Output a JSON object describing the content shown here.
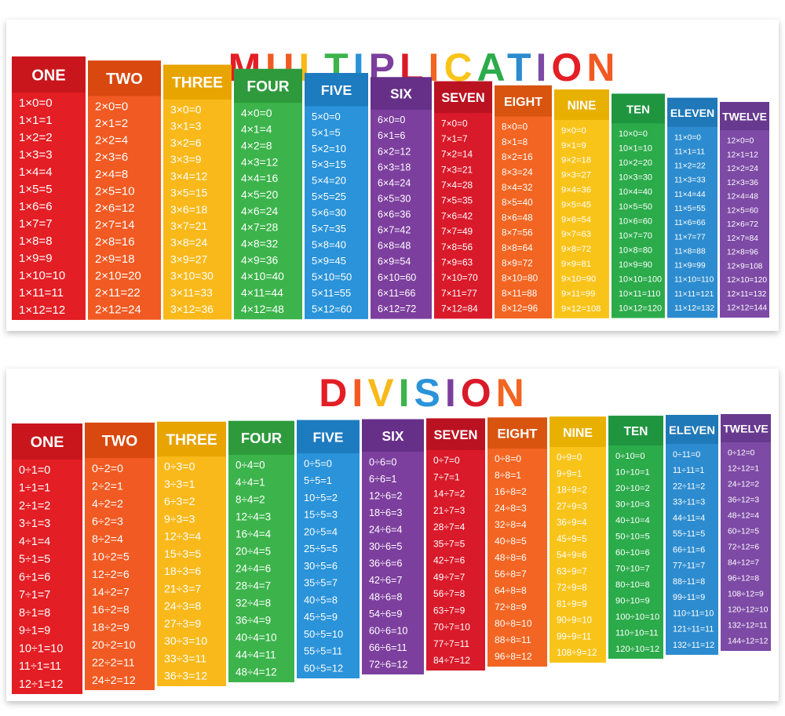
{
  "multiplication": {
    "title": "MULTIPLICATION",
    "columns": [
      {
        "header": "ONE",
        "facts": [
          "1×0=0",
          "1×1=1",
          "1×2=2",
          "1×3=3",
          "1×4=4",
          "1×5=5",
          "1×6=6",
          "1×7=7",
          "1×8=8",
          "1×9=9",
          "1×10=10",
          "1×11=11",
          "1×12=12"
        ]
      },
      {
        "header": "TWO",
        "facts": [
          "2×0=0",
          "2×1=2",
          "2×2=4",
          "2×3=6",
          "2×4=8",
          "2×5=10",
          "2×6=12",
          "2×7=14",
          "2×8=16",
          "2×9=18",
          "2×10=20",
          "2×11=22",
          "2×12=24"
        ]
      },
      {
        "header": "THREE",
        "facts": [
          "3×0=0",
          "3×1=3",
          "3×2=6",
          "3×3=9",
          "3×4=12",
          "3×5=15",
          "3×6=18",
          "3×7=21",
          "3×8=24",
          "3×9=27",
          "3×10=30",
          "3×11=33",
          "3×12=36"
        ]
      },
      {
        "header": "FOUR",
        "facts": [
          "4×0=0",
          "4×1=4",
          "4×2=8",
          "4×3=12",
          "4×4=16",
          "4×5=20",
          "4×6=24",
          "4×7=28",
          "4×8=32",
          "4×9=36",
          "4×10=40",
          "4×11=44",
          "4×12=48"
        ]
      },
      {
        "header": "FIVE",
        "facts": [
          "5×0=0",
          "5×1=5",
          "5×2=10",
          "5×3=15",
          "5×4=20",
          "5×5=25",
          "5×6=30",
          "5×7=35",
          "5×8=40",
          "5×9=45",
          "5×10=50",
          "5×11=55",
          "5×12=60"
        ]
      },
      {
        "header": "SIX",
        "facts": [
          "6×0=0",
          "6×1=6",
          "6×2=12",
          "6×3=18",
          "6×4=24",
          "6×5=30",
          "6×6=36",
          "6×7=42",
          "6×8=48",
          "6×9=54",
          "6×10=60",
          "6×11=66",
          "6×12=72"
        ]
      },
      {
        "header": "SEVEN",
        "facts": [
          "7×0=0",
          "7×1=7",
          "7×2=14",
          "7×3=21",
          "7×4=28",
          "7×5=35",
          "7×6=42",
          "7×7=49",
          "7×8=56",
          "7×9=63",
          "7×10=70",
          "7×11=77",
          "7×12=84"
        ]
      },
      {
        "header": "EIGHT",
        "facts": [
          "8×0=0",
          "8×1=8",
          "8×2=16",
          "8×3=24",
          "8×4=32",
          "8×5=40",
          "8×6=48",
          "8×7=56",
          "8×8=64",
          "8×9=72",
          "8×10=80",
          "8×11=88",
          "8×12=96"
        ]
      },
      {
        "header": "NINE",
        "facts": [
          "9×0=0",
          "9×1=9",
          "9×2=18",
          "9×3=27",
          "9×4=36",
          "9×5=45",
          "9×6=54",
          "9×7=63",
          "9×8=72",
          "9×9=81",
          "9×10=90",
          "9×11=99",
          "9×12=108"
        ]
      },
      {
        "header": "TEN",
        "facts": [
          "10×0=0",
          "10×1=10",
          "10×2=20",
          "10×3=30",
          "10×4=40",
          "10×5=50",
          "10×6=60",
          "10×7=70",
          "10×8=80",
          "10×9=90",
          "10×10=100",
          "10×11=110",
          "10×12=120"
        ]
      },
      {
        "header": "ELEVEN",
        "facts": [
          "11×0=0",
          "11×1=11",
          "11×2=22",
          "11×3=33",
          "11×4=44",
          "11×5=55",
          "11×6=66",
          "11×7=77",
          "11×8=88",
          "11×9=99",
          "11×10=110",
          "11×11=121",
          "11×12=132"
        ]
      },
      {
        "header": "TWELVE",
        "facts": [
          "12×0=0",
          "12×1=12",
          "12×2=24",
          "12×3=36",
          "12×4=48",
          "12×5=60",
          "12×6=72",
          "12×7=84",
          "12×8=96",
          "12×9=108",
          "12×10=120",
          "12×11=132",
          "12×12=144"
        ]
      }
    ]
  },
  "division": {
    "title": "DIVISION",
    "columns": [
      {
        "header": "ONE",
        "facts": [
          "0÷1=0",
          "1÷1=1",
          "2÷1=2",
          "3÷1=3",
          "4÷1=4",
          "5÷1=5",
          "6÷1=6",
          "7÷1=7",
          "8÷1=8",
          "9÷1=9",
          "10÷1=10",
          "11÷1=11",
          "12÷1=12"
        ]
      },
      {
        "header": "TWO",
        "facts": [
          "0÷2=0",
          "2÷2=1",
          "4÷2=2",
          "6÷2=3",
          "8÷2=4",
          "10÷2=5",
          "12÷2=6",
          "14÷2=7",
          "16÷2=8",
          "18÷2=9",
          "20÷2=10",
          "22÷2=11",
          "24÷2=12"
        ]
      },
      {
        "header": "THREE",
        "facts": [
          "0÷3=0",
          "3÷3=1",
          "6÷3=2",
          "9÷3=3",
          "12÷3=4",
          "15÷3=5",
          "18÷3=6",
          "21÷3=7",
          "24÷3=8",
          "27÷3=9",
          "30÷3=10",
          "33÷3=11",
          "36÷3=12"
        ]
      },
      {
        "header": "FOUR",
        "facts": [
          "0÷4=0",
          "4÷4=1",
          "8÷4=2",
          "12÷4=3",
          "16÷4=4",
          "20÷4=5",
          "24÷4=6",
          "28÷4=7",
          "32÷4=8",
          "36÷4=9",
          "40÷4=10",
          "44÷4=11",
          "48÷4=12"
        ]
      },
      {
        "header": "FIVE",
        "facts": [
          "0÷5=0",
          "5÷5=1",
          "10÷5=2",
          "15÷5=3",
          "20÷5=4",
          "25÷5=5",
          "30÷5=6",
          "35÷5=7",
          "40÷5=8",
          "45÷5=9",
          "50÷5=10",
          "55÷5=11",
          "60÷5=12"
        ]
      },
      {
        "header": "SIX",
        "facts": [
          "0÷6=0",
          "6÷6=1",
          "12÷6=2",
          "18÷6=3",
          "24÷6=4",
          "30÷6=5",
          "36÷6=6",
          "42÷6=7",
          "48÷6=8",
          "54÷6=9",
          "60÷6=10",
          "66÷6=11",
          "72÷6=12"
        ]
      },
      {
        "header": "SEVEN",
        "facts": [
          "0÷7=0",
          "7÷7=1",
          "14÷7=2",
          "21÷7=3",
          "28÷7=4",
          "35÷7=5",
          "42÷7=6",
          "49÷7=7",
          "56÷7=8",
          "63÷7=9",
          "70÷7=10",
          "77÷7=11",
          "84÷7=12"
        ]
      },
      {
        "header": "EIGHT",
        "facts": [
          "0÷8=0",
          "8÷8=1",
          "16÷8=2",
          "24÷8=3",
          "32÷8=4",
          "40÷8=5",
          "48÷8=6",
          "56÷8=7",
          "64÷8=8",
          "72÷8=9",
          "80÷8=10",
          "88÷8=11",
          "96÷8=12"
        ]
      },
      {
        "header": "NINE",
        "facts": [
          "0÷9=0",
          "9÷9=1",
          "18÷9=2",
          "27÷9=3",
          "36÷9=4",
          "45÷9=5",
          "54÷9=6",
          "63÷9=7",
          "72÷9=8",
          "81÷9=9",
          "90÷9=10",
          "99÷9=11",
          "108÷9=12"
        ]
      },
      {
        "header": "TEN",
        "facts": [
          "0÷10=0",
          "10÷10=1",
          "20÷10=2",
          "30÷10=3",
          "40÷10=4",
          "50÷10=5",
          "60÷10=6",
          "70÷10=7",
          "80÷10=8",
          "90÷10=9",
          "100÷10=10",
          "110÷10=11",
          "120÷10=12"
        ]
      },
      {
        "header": "ELEVEN",
        "facts": [
          "0÷11=0",
          "11÷11=1",
          "22÷11=2",
          "33÷11=3",
          "44÷11=4",
          "55÷11=5",
          "66÷11=6",
          "77÷11=7",
          "88÷11=8",
          "99÷11=9",
          "110÷11=10",
          "121÷11=11",
          "132÷11=12"
        ]
      },
      {
        "header": "TWELVE",
        "facts": [
          "0÷12=0",
          "12÷12=1",
          "24÷12=2",
          "36÷12=3",
          "48÷12=4",
          "60÷12=5",
          "72÷12=6",
          "84÷12=7",
          "96÷12=8",
          "108÷12=9",
          "120÷12=10",
          "132÷12=11",
          "144÷12=12"
        ]
      }
    ]
  }
}
